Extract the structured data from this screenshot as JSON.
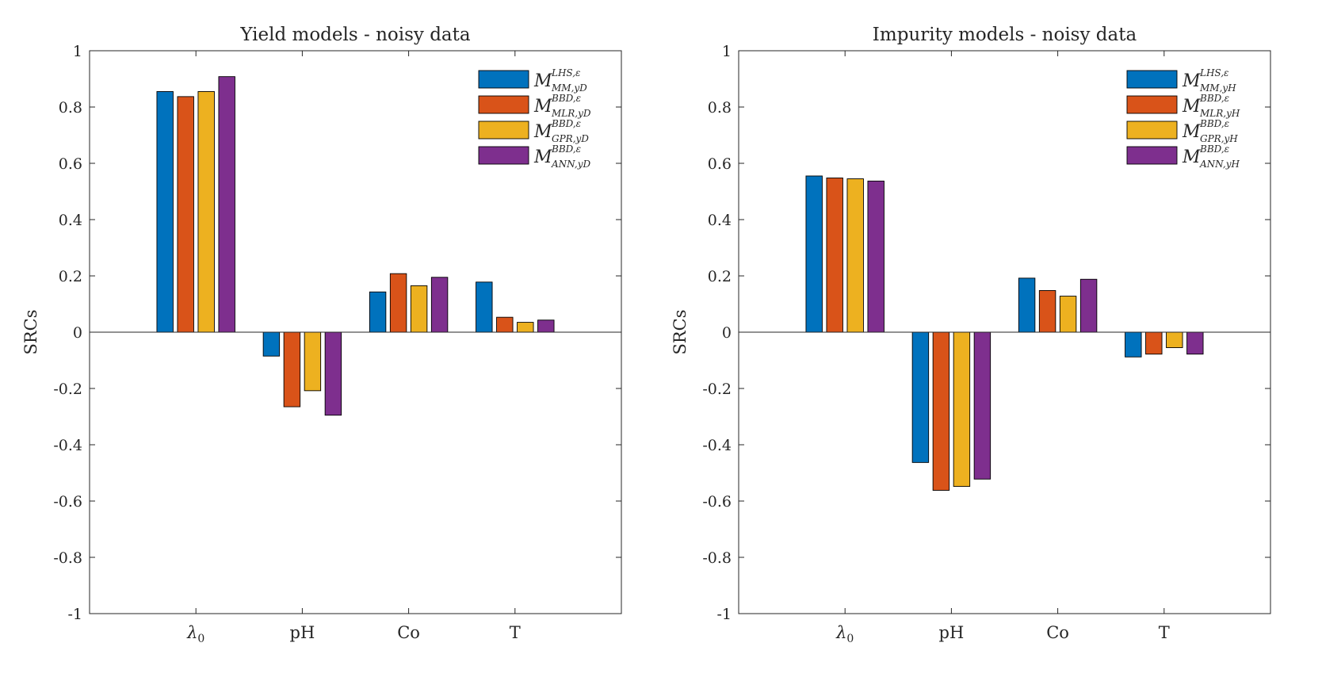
{
  "chart_data": [
    {
      "type": "bar",
      "title": "Yield models - noisy data",
      "xlabel": "",
      "ylabel": "SRCs",
      "ylim": [
        -1,
        1
      ],
      "yticks": [
        1,
        0.8,
        0.6,
        0.4,
        0.2,
        0,
        -0.2,
        -0.4,
        -0.6,
        -0.8,
        -1
      ],
      "ytick_labels": [
        "1",
        "0.8",
        "0.6",
        "0.4",
        "0.2",
        "0",
        "-0.2",
        "-0.4",
        "-0.6",
        "-0.8",
        "-1"
      ],
      "categories": [
        "λ0",
        "pH",
        "Co",
        "T"
      ],
      "legend_position": "top-right",
      "grid": false,
      "series": [
        {
          "name": "M^{LHS,ε}_{MM,yD}",
          "color": "#0072BD",
          "values": [
            0.855,
            -0.085,
            0.143,
            0.178
          ]
        },
        {
          "name": "M^{BBD,ε}_{MLR,yD}",
          "color": "#D95319",
          "values": [
            0.837,
            -0.265,
            0.208,
            0.053
          ]
        },
        {
          "name": "M^{BBD,ε}_{GPR,yD}",
          "color": "#EDB120",
          "values": [
            0.855,
            -0.208,
            0.165,
            0.035
          ]
        },
        {
          "name": "M^{BBD,ε}_{ANN,yD}",
          "color": "#7E2F8E",
          "values": [
            0.908,
            -0.295,
            0.195,
            0.043
          ]
        }
      ],
      "legend": [
        {
          "main": "M",
          "sup": "LHS,ε",
          "sub": "MM,yD"
        },
        {
          "main": "M",
          "sup": "BBD,ε",
          "sub": "MLR,yD"
        },
        {
          "main": "M",
          "sup": "BBD,ε",
          "sub": "GPR,yD"
        },
        {
          "main": "M",
          "sup": "BBD,ε",
          "sub": "ANN,yD"
        }
      ]
    },
    {
      "type": "bar",
      "title": "Impurity models - noisy data",
      "xlabel": "",
      "ylabel": "SRCs",
      "ylim": [
        -1,
        1
      ],
      "yticks": [
        1,
        0.8,
        0.6,
        0.4,
        0.2,
        0,
        -0.2,
        -0.4,
        -0.6,
        -0.8,
        -1
      ],
      "ytick_labels": [
        "1",
        "0.8",
        "0.6",
        "0.4",
        "0.2",
        "0",
        "-0.2",
        "-0.4",
        "-0.6",
        "-0.8",
        "-1"
      ],
      "categories": [
        "λ0",
        "pH",
        "Co",
        "T"
      ],
      "legend_position": "top-right",
      "grid": false,
      "series": [
        {
          "name": "M^{LHS,ε}_{MM,yH}",
          "color": "#0072BD",
          "values": [
            0.555,
            -0.463,
            0.192,
            -0.088
          ]
        },
        {
          "name": "M^{BBD,ε}_{MLR,yH}",
          "color": "#D95319",
          "values": [
            0.548,
            -0.562,
            0.148,
            -0.078
          ]
        },
        {
          "name": "M^{BBD,ε}_{GPR,yH}",
          "color": "#EDB120",
          "values": [
            0.545,
            -0.548,
            0.128,
            -0.055
          ]
        },
        {
          "name": "M^{BBD,ε}_{ANN,yH}",
          "color": "#7E2F8E",
          "values": [
            0.537,
            -0.522,
            0.188,
            -0.078
          ]
        }
      ],
      "legend": [
        {
          "main": "M",
          "sup": "LHS,ε",
          "sub": "MM,yH"
        },
        {
          "main": "M",
          "sup": "BBD,ε",
          "sub": "MLR,yH"
        },
        {
          "main": "M",
          "sup": "BBD,ε",
          "sub": "GPR,yH"
        },
        {
          "main": "M",
          "sup": "BBD,ε",
          "sub": "ANN,yH"
        }
      ]
    }
  ]
}
